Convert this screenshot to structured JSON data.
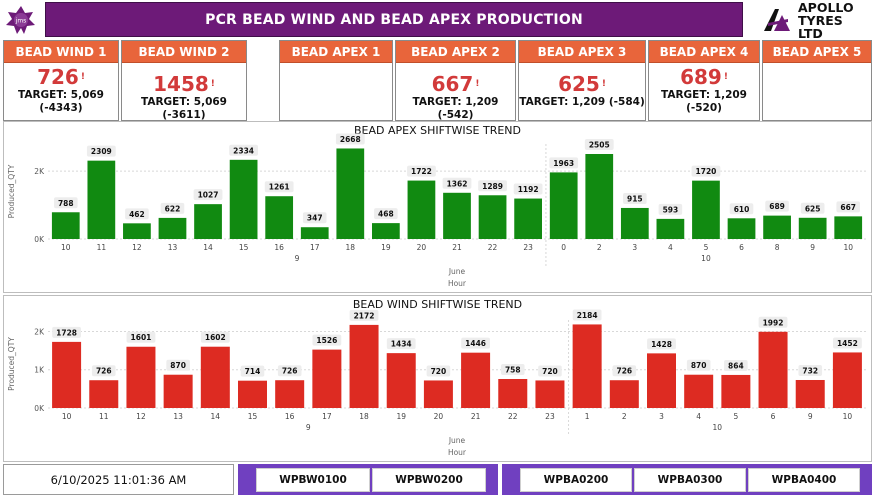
{
  "header": {
    "title": "PCR BEAD WIND AND BEAD APEX PRODUCTION",
    "brand": "APOLLO TYRES LTD",
    "left_logo_text": "jms"
  },
  "cards": [
    {
      "label": "BEAD WIND 1",
      "value": "726",
      "flag": "!",
      "target": "TARGET: 5,069",
      "diff": "(-4343)"
    },
    {
      "label": "BEAD WIND 2",
      "value": "1458",
      "flag": "!",
      "target": "TARGET: 5,069 (-3611)",
      "diff": ""
    },
    {
      "label": "BEAD APEX 1",
      "value": "",
      "flag": "",
      "target": "",
      "diff": ""
    },
    {
      "label": "BEAD APEX 2",
      "value": "667",
      "flag": "!",
      "target": "TARGET: 1,209 (-542)",
      "diff": ""
    },
    {
      "label": "BEAD APEX 3",
      "value": "625",
      "flag": "!",
      "target": "TARGET: 1,209 (-584)",
      "diff": ""
    },
    {
      "label": "BEAD APEX 4",
      "value": "689",
      "flag": "!",
      "target": "TARGET: 1,209",
      "diff": "(-520)"
    },
    {
      "label": "BEAD APEX 5",
      "value": "",
      "flag": "",
      "target": "",
      "diff": ""
    }
  ],
  "chart_data": [
    {
      "type": "bar",
      "title": "BEAD APEX SHIFTWISE TREND",
      "ylabel": "Produced_QTY",
      "xlabel": "Hour",
      "month_label": "June",
      "color": "#118a11",
      "y_ticks": [
        "0K",
        "2K"
      ],
      "ylim": [
        0,
        2800
      ],
      "categories": [
        "10",
        "11",
        "12",
        "13",
        "14",
        "15",
        "16",
        "17",
        "18",
        "19",
        "20",
        "21",
        "22",
        "23",
        "0",
        "2",
        "3",
        "4",
        "5",
        "6",
        "8",
        "9",
        "10"
      ],
      "day_groups": [
        {
          "label": "9",
          "from": 0,
          "to": 13
        },
        {
          "label": "10",
          "from": 14,
          "to": 22
        }
      ],
      "values": [
        788,
        2309,
        462,
        622,
        1027,
        2334,
        1261,
        347,
        2668,
        468,
        1722,
        1362,
        1289,
        1192,
        1963,
        2505,
        915,
        593,
        1720,
        610,
        689,
        625,
        667
      ],
      "grid": true
    },
    {
      "type": "bar",
      "title": "BEAD WIND SHIFTWISE TREND",
      "ylabel": "Produced_QTY",
      "xlabel": "Hour",
      "month_label": "June",
      "color": "#dd2b22",
      "y_ticks": [
        "0K",
        "1K",
        "2K"
      ],
      "ylim": [
        0,
        2300
      ],
      "categories": [
        "10",
        "11",
        "12",
        "13",
        "14",
        "15",
        "16",
        "17",
        "18",
        "19",
        "20",
        "21",
        "22",
        "23",
        "1",
        "2",
        "3",
        "4",
        "5",
        "6",
        "9",
        "10"
      ],
      "day_groups": [
        {
          "label": "9",
          "from": 0,
          "to": 13
        },
        {
          "label": "10",
          "from": 14,
          "to": 21
        }
      ],
      "values": [
        1728,
        726,
        1601,
        870,
        1602,
        714,
        726,
        1526,
        2172,
        1434,
        720,
        1446,
        758,
        720,
        2184,
        726,
        1428,
        870,
        864,
        1992,
        732,
        1452
      ],
      "grid": true
    }
  ],
  "footer": {
    "datetime": "6/10/2025 11:01:36 AM",
    "wind_buttons": [
      "WPBW0100",
      "WPBW0200"
    ],
    "apex_buttons": [
      "WPBA0200",
      "WPBA0300",
      "WPBA0400"
    ],
    "bar_color": "#7040c0"
  }
}
